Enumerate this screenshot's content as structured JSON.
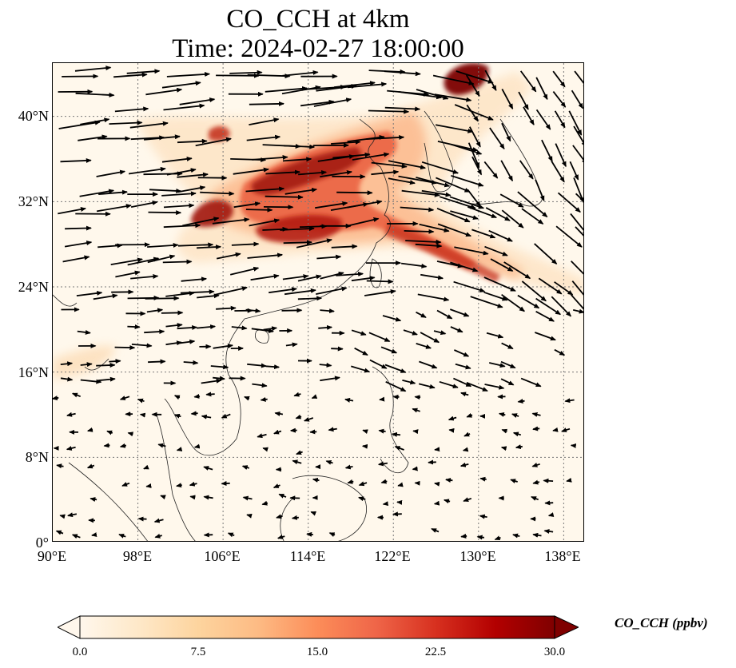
{
  "title": {
    "line1": "CO_CCH at 4km",
    "line2": "Time: 2024-02-27 18:00:00"
  },
  "map": {
    "extent_lon": [
      90,
      140
    ],
    "extent_lat": [
      0,
      45
    ],
    "gridlines": true,
    "lat_ticks": [
      "0°",
      "8°N",
      "16°N",
      "24°N",
      "32°N",
      "40°N"
    ],
    "lon_ticks": [
      "90°E",
      "98°E",
      "106°E",
      "114°E",
      "122°E",
      "130°E",
      "138°E"
    ],
    "background_color": "#fff8ec",
    "coastline_color": "#222222",
    "wind_arrow_color": "#000000"
  },
  "colorbar": {
    "label": "CO_CCH (ppbv)",
    "min": 0.0,
    "max": 30.0,
    "tick_labels": [
      "0.0",
      "7.5",
      "15.0",
      "22.5",
      "30.0"
    ],
    "colormap": "OrRd",
    "extend": "both",
    "colors": [
      "#fff7ec",
      "#fee8c8",
      "#fdd49e",
      "#fdbb84",
      "#fc8d59",
      "#ef6548",
      "#d7301f",
      "#b30000",
      "#7f0000"
    ]
  }
}
